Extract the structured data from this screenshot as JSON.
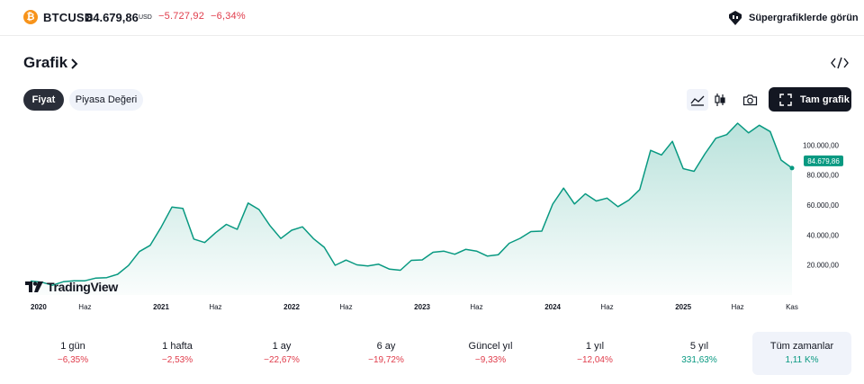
{
  "header": {
    "coin_symbol": "₿",
    "ticker": "BTCUSD",
    "price": "84.679,86",
    "currency": "USD",
    "change_abs": "−5.727,92",
    "change_pct": "−6,34%",
    "super_link": "Süpergrafiklerde görün"
  },
  "section": {
    "title": "Grafik"
  },
  "tabs": [
    {
      "label": "Fiyat",
      "active": true
    },
    {
      "label": "Piyasa Değeri",
      "active": false
    }
  ],
  "toolbar": {
    "full_chart_label": "Tam grafik"
  },
  "logo": {
    "text": "TradingView"
  },
  "chart_data": {
    "type": "area",
    "series": [
      {
        "values": [
          9300,
          8600,
          6500,
          8800,
          9400,
          9500,
          11300,
          11600,
          13800,
          19700,
          29000,
          33100,
          45200,
          58700,
          57800,
          37300,
          35000,
          41500,
          47100,
          43800,
          61300,
          57000,
          46300,
          37700,
          43200,
          45500,
          37600,
          31800,
          19800,
          23300,
          20100,
          19400,
          20500,
          17200,
          16500,
          23100,
          23400,
          28500,
          29200,
          27200,
          30400,
          29300,
          25900,
          26900,
          34500,
          37800,
          42300,
          42600,
          60600,
          71300,
          60700,
          67500,
          62700,
          64600,
          58900,
          63300,
          70300,
          96500,
          93400,
          102500,
          84300,
          82500,
          94200,
          104600,
          107000,
          114600,
          108200,
          113200,
          109000,
          90000,
          84679.86
        ]
      }
    ],
    "x_start": "2020-01",
    "x_labels": [
      {
        "label": "2020",
        "month_index": 0,
        "major": true
      },
      {
        "label": "Haz",
        "month_index": 5,
        "major": false
      },
      {
        "label": "2021",
        "month_index": 12,
        "major": true
      },
      {
        "label": "Haz",
        "month_index": 17,
        "major": false
      },
      {
        "label": "2022",
        "month_index": 24,
        "major": true
      },
      {
        "label": "Haz",
        "month_index": 29,
        "major": false
      },
      {
        "label": "2023",
        "month_index": 36,
        "major": true
      },
      {
        "label": "Haz",
        "month_index": 41,
        "major": false
      },
      {
        "label": "2024",
        "month_index": 48,
        "major": true
      },
      {
        "label": "Haz",
        "month_index": 53,
        "major": false
      },
      {
        "label": "2025",
        "month_index": 60,
        "major": true
      },
      {
        "label": "Haz",
        "month_index": 65,
        "major": false
      },
      {
        "label": "Kas",
        "month_index": 70,
        "major": false
      }
    ],
    "y_ticks": [
      {
        "value": 20000,
        "label": "20.000,00"
      },
      {
        "value": 40000,
        "label": "40.000,00"
      },
      {
        "value": 60000,
        "label": "60.000,00"
      },
      {
        "value": 80000,
        "label": "80.000,00"
      },
      {
        "value": 100000,
        "label": "100.000,00"
      }
    ],
    "ylim": [
      0,
      120000
    ],
    "last_value_label": "84.679,86",
    "line_color": "#089981",
    "grid": false
  },
  "periods": [
    {
      "label": "1 gün",
      "value": "−6,35%",
      "trend": "neg",
      "active": false
    },
    {
      "label": "1 hafta",
      "value": "−2,53%",
      "trend": "neg",
      "active": false
    },
    {
      "label": "1 ay",
      "value": "−22,67%",
      "trend": "neg",
      "active": false
    },
    {
      "label": "6 ay",
      "value": "−19,72%",
      "trend": "neg",
      "active": false
    },
    {
      "label": "Güncel yıl",
      "value": "−9,33%",
      "trend": "neg",
      "active": false
    },
    {
      "label": "1 yıl",
      "value": "−12,04%",
      "trend": "neg",
      "active": false
    },
    {
      "label": "5 yıl",
      "value": "331,63%",
      "trend": "pos",
      "active": false
    },
    {
      "label": "Tüm zamanlar",
      "value": "1,11 K%",
      "trend": "pos",
      "active": true
    }
  ]
}
